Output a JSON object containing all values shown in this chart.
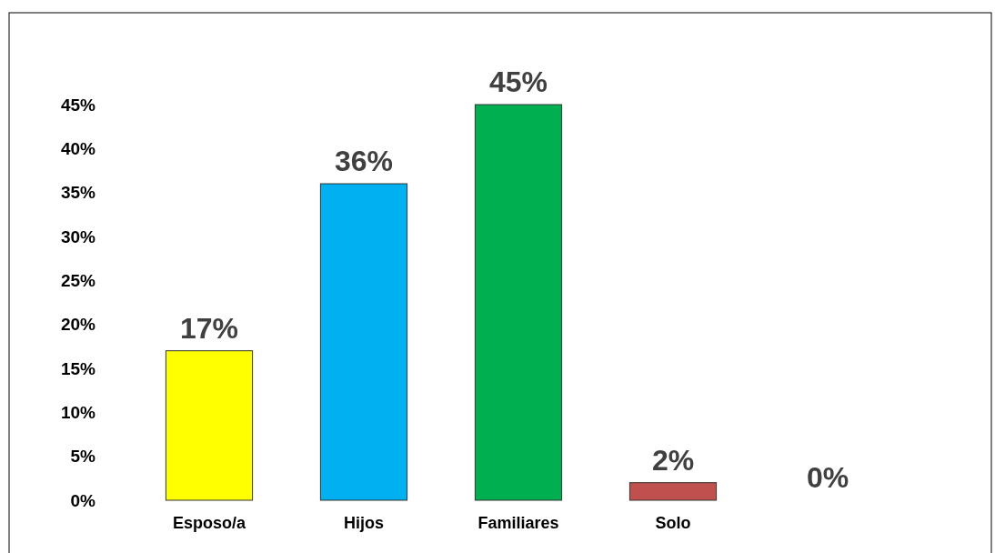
{
  "chart_data": {
    "type": "bar",
    "categories": [
      "Esposo/a",
      "Hijos",
      "Familiares",
      "Solo",
      null
    ],
    "values": [
      17,
      36,
      45,
      2,
      0
    ],
    "colors": [
      "#ffff00",
      "#00b0f0",
      "#00b050",
      "#c0504d",
      "#c89600"
    ],
    "value_labels": [
      "17%",
      "36%",
      "45%",
      "2%",
      "0%"
    ],
    "ylim": [
      0,
      45
    ],
    "yticks": [
      {
        "value": 0,
        "label": "0%"
      },
      {
        "value": 5,
        "label": "5%"
      },
      {
        "value": 10,
        "label": "10%"
      },
      {
        "value": 15,
        "label": "15%"
      },
      {
        "value": 20,
        "label": "20%"
      },
      {
        "value": 25,
        "label": "25%"
      },
      {
        "value": 30,
        "label": "30%"
      },
      {
        "value": 35,
        "label": "35%"
      },
      {
        "value": 40,
        "label": "40%"
      },
      {
        "value": 45,
        "label": "45%"
      }
    ],
    "grid": false
  }
}
